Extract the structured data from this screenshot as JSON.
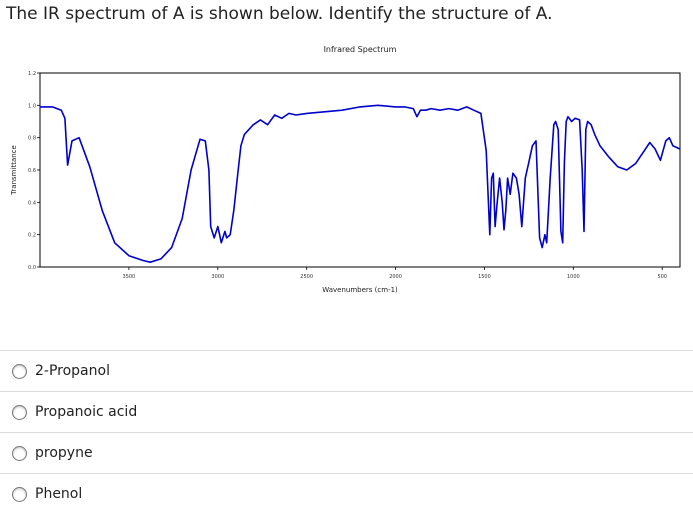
{
  "question": "The IR spectrum of A is shown below. Identify the structure of A.",
  "options": [
    "2-Propanol",
    "Propanoic acid",
    "propyne",
    "Phenol"
  ],
  "chart_data": {
    "type": "line",
    "title": "Infrared Spectrum",
    "xlabel": "Wavenumbers (cm-1)",
    "ylabel": "Transmittance",
    "xlim": [
      4000,
      400
    ],
    "ylim": [
      0,
      1.2
    ],
    "x_ticks": [
      3500,
      3000,
      2500,
      2000,
      1500,
      1000,
      500
    ],
    "x_tick_labels": [
      "3500",
      "3000",
      "2500",
      "2000",
      "1500",
      "1000",
      "500"
    ],
    "y_ticks": [
      0.0,
      0.2,
      0.4,
      0.6,
      0.8,
      1.0,
      1.2
    ],
    "y_tick_labels": [
      "0.0",
      "0.2",
      "0.4",
      "0.6",
      "0.8",
      "1.0",
      "1.2"
    ],
    "grid": false,
    "line_color": "#0000cc",
    "series": [
      {
        "x": [
          4000,
          3930,
          3880,
          3860,
          3845,
          3820,
          3780,
          3720,
          3650,
          3580,
          3500,
          3420,
          3380,
          3320,
          3260,
          3200,
          3150,
          3100,
          3070,
          3050,
          3040,
          3020,
          3000,
          2990,
          2980,
          2960,
          2950,
          2930,
          2910,
          2890,
          2870,
          2850,
          2800,
          2760,
          2720,
          2680,
          2640,
          2600,
          2560,
          2500,
          2400,
          2300,
          2200,
          2100,
          2000,
          1950,
          1900,
          1880,
          1860,
          1830,
          1800,
          1750,
          1700,
          1650,
          1600,
          1560,
          1520,
          1490,
          1470,
          1460,
          1450,
          1440,
          1430,
          1415,
          1400,
          1390,
          1380,
          1370,
          1355,
          1340,
          1320,
          1305,
          1290,
          1270,
          1250,
          1230,
          1210,
          1190,
          1175,
          1160,
          1150,
          1130,
          1110,
          1100,
          1085,
          1070,
          1060,
          1050,
          1040,
          1030,
          1010,
          990,
          965,
          950,
          940,
          930,
          920,
          900,
          880,
          850,
          800,
          750,
          700,
          650,
          600,
          570,
          540,
          510,
          480,
          460,
          440,
          420,
          400
        ],
        "y": [
          0.99,
          0.99,
          0.97,
          0.92,
          0.63,
          0.78,
          0.8,
          0.62,
          0.35,
          0.15,
          0.07,
          0.04,
          0.03,
          0.05,
          0.12,
          0.3,
          0.6,
          0.79,
          0.78,
          0.6,
          0.25,
          0.18,
          0.25,
          0.2,
          0.15,
          0.22,
          0.18,
          0.2,
          0.35,
          0.55,
          0.75,
          0.82,
          0.88,
          0.91,
          0.88,
          0.94,
          0.92,
          0.95,
          0.94,
          0.95,
          0.96,
          0.97,
          0.99,
          1.0,
          0.99,
          0.99,
          0.98,
          0.93,
          0.97,
          0.97,
          0.98,
          0.97,
          0.98,
          0.97,
          0.99,
          0.97,
          0.95,
          0.72,
          0.2,
          0.55,
          0.58,
          0.25,
          0.38,
          0.55,
          0.4,
          0.23,
          0.35,
          0.55,
          0.45,
          0.58,
          0.55,
          0.45,
          0.25,
          0.55,
          0.65,
          0.75,
          0.78,
          0.18,
          0.12,
          0.2,
          0.15,
          0.55,
          0.88,
          0.9,
          0.85,
          0.22,
          0.15,
          0.65,
          0.9,
          0.93,
          0.9,
          0.92,
          0.91,
          0.6,
          0.22,
          0.85,
          0.9,
          0.88,
          0.82,
          0.75,
          0.68,
          0.62,
          0.6,
          0.64,
          0.72,
          0.77,
          0.73,
          0.66,
          0.78,
          0.8,
          0.75,
          0.74,
          0.73
        ]
      }
    ]
  }
}
